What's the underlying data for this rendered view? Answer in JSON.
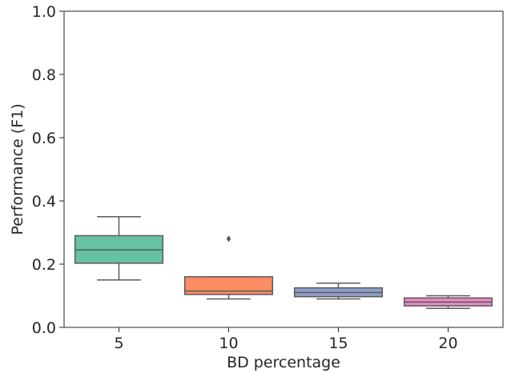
{
  "chart_data": {
    "type": "box",
    "title": "",
    "xlabel": "BD percentage",
    "ylabel": "Performance (F1)",
    "categories": [
      "5",
      "10",
      "15",
      "20"
    ],
    "ylim": [
      0.0,
      1.0
    ],
    "yticks": [
      "0.0",
      "0.2",
      "0.4",
      "0.6",
      "0.8",
      "1.0"
    ],
    "grid": false,
    "boxes": [
      {
        "category": "5",
        "whisker_low": 0.15,
        "q1": 0.203,
        "median": 0.245,
        "q3": 0.29,
        "whisker_high": 0.35,
        "outliers": [],
        "color": "#66c2a5"
      },
      {
        "category": "10",
        "whisker_low": 0.09,
        "q1": 0.104,
        "median": 0.115,
        "q3": 0.16,
        "whisker_high": 0.16,
        "outliers": [
          0.28
        ],
        "color": "#fc8d62"
      },
      {
        "category": "15",
        "whisker_low": 0.09,
        "q1": 0.097,
        "median": 0.11,
        "q3": 0.125,
        "whisker_high": 0.14,
        "outliers": [],
        "color": "#8da0cb"
      },
      {
        "category": "20",
        "whisker_low": 0.06,
        "q1": 0.068,
        "median": 0.08,
        "q3": 0.093,
        "whisker_high": 0.1,
        "outliers": [],
        "color": "#e78ac3"
      }
    ]
  }
}
